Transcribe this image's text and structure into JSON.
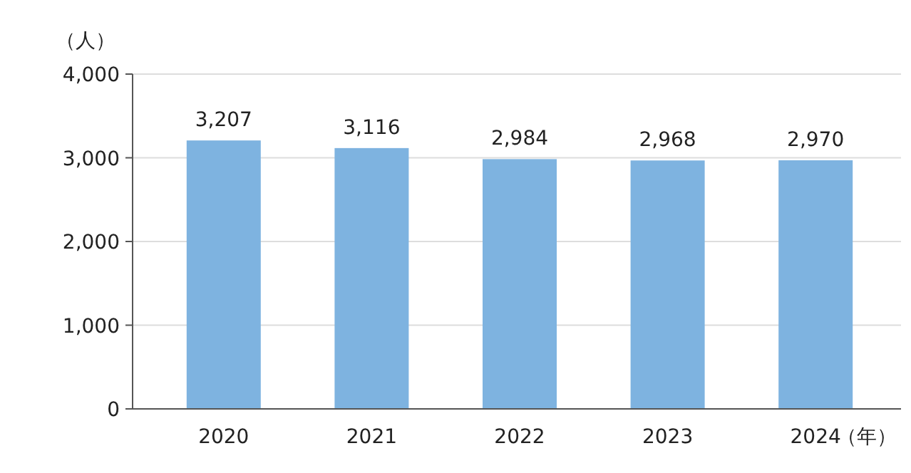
{
  "chart_data": {
    "type": "bar",
    "ylabel": "（人）",
    "xlabel": "（年）",
    "categories": [
      "2020",
      "2021",
      "2022",
      "2023",
      "2024"
    ],
    "values": [
      3207,
      3116,
      2984,
      2968,
      2970
    ],
    "value_labels": [
      "3,207",
      "3,116",
      "2,984",
      "2,968",
      "2,970"
    ],
    "color": "#7eb3e0",
    "ylim": [
      0,
      4000
    ],
    "yticks": [
      0,
      {
        "value": 1000,
        "label": "1,000"
      },
      {
        "value": 2000,
        "label": "2,000"
      },
      {
        "value": 3000,
        "label": "3,000"
      },
      {
        "value": 4000,
        "label": "4,000"
      }
    ],
    "grid": "y"
  }
}
